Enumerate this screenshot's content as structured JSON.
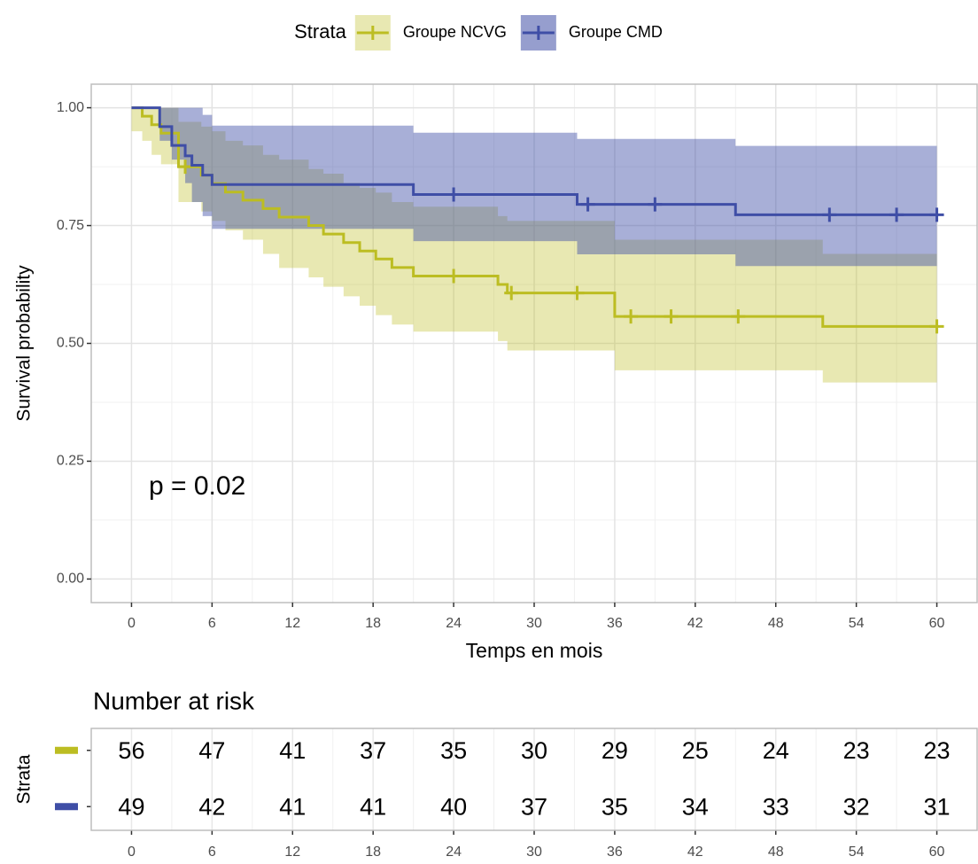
{
  "chart_data": [
    {
      "type": "survival",
      "legend_title": "Strata",
      "legend_position": "top",
      "xlabel": "Temps en mois",
      "ylabel": "Survival probability",
      "annotation": "p = 0.02",
      "xlim": [
        -3,
        63
      ],
      "ylim": [
        -0.05,
        1.05
      ],
      "xticks": [
        0,
        6,
        12,
        18,
        24,
        30,
        36,
        42,
        48,
        54,
        60
      ],
      "yticks": [
        {
          "value": 0,
          "label": "0.00"
        },
        {
          "value": 0.25,
          "label": "0.25"
        },
        {
          "value": 0.5,
          "label": "0.50"
        },
        {
          "value": 0.75,
          "label": "0.75"
        },
        {
          "value": 1,
          "label": "1.00"
        }
      ],
      "grid": true,
      "series": [
        {
          "name": "Groupe NCVG",
          "color": "#bcbd22",
          "x": [
            0,
            0.8,
            1.5,
            2.2,
            3.5,
            5.2,
            6.0,
            7.0,
            8.3,
            9.8,
            11.0,
            13.2,
            14.3,
            15.8,
            17.0,
            18.2,
            19.4,
            21.0,
            27.3,
            28.0,
            36.0,
            51.5,
            60
          ],
          "values": [
            1.0,
            0.982,
            0.964,
            0.946,
            0.875,
            0.857,
            0.839,
            0.821,
            0.804,
            0.786,
            0.768,
            0.75,
            0.732,
            0.714,
            0.696,
            0.679,
            0.661,
            0.643,
            0.625,
            0.607,
            0.557,
            0.536,
            0.536
          ],
          "upper": [
            1.0,
            1.0,
            1.0,
            1.0,
            0.97,
            0.96,
            0.95,
            0.93,
            0.92,
            0.9,
            0.89,
            0.87,
            0.86,
            0.84,
            0.83,
            0.82,
            0.8,
            0.79,
            0.77,
            0.76,
            0.72,
            0.69,
            0.69
          ],
          "lower": [
            0.95,
            0.93,
            0.9,
            0.88,
            0.8,
            0.78,
            0.76,
            0.74,
            0.72,
            0.69,
            0.66,
            0.64,
            0.62,
            0.6,
            0.58,
            0.56,
            0.54,
            0.525,
            0.505,
            0.485,
            0.443,
            0.417,
            0.417
          ],
          "censor_x": [
            4,
            24,
            28.3,
            33.2,
            37.2,
            40.2,
            45.2,
            60
          ],
          "censor_values": [
            0.875,
            0.643,
            0.607,
            0.607,
            0.557,
            0.557,
            0.557,
            0.536
          ]
        },
        {
          "name": "Groupe CMD",
          "color": "#3f4ea6",
          "x": [
            0,
            2.1,
            3.0,
            4.0,
            4.5,
            5.3,
            6.0,
            21.0,
            33.2,
            45.0,
            60
          ],
          "values": [
            1.0,
            0.96,
            0.92,
            0.898,
            0.878,
            0.857,
            0.837,
            0.816,
            0.795,
            0.773,
            0.773
          ],
          "upper": [
            1.0,
            1.0,
            1.0,
            1.0,
            1.0,
            0.985,
            0.962,
            0.947,
            0.934,
            0.919,
            0.904
          ],
          "lower": [
            1.0,
            0.93,
            0.89,
            0.84,
            0.8,
            0.77,
            0.743,
            0.717,
            0.689,
            0.664,
            0.664
          ],
          "censor_x": [
            24,
            34,
            39,
            52,
            57,
            60
          ],
          "censor_values": [
            0.816,
            0.795,
            0.795,
            0.773,
            0.773,
            0.773
          ]
        }
      ]
    },
    {
      "type": "risk_table",
      "title": "Number at risk",
      "ylabel": "Strata",
      "xlim": [
        -3,
        63
      ],
      "xticks": [
        0,
        6,
        12,
        18,
        24,
        30,
        36,
        42,
        48,
        54,
        60
      ],
      "rows": [
        {
          "color": "#bcbd22",
          "values": [
            56,
            47,
            41,
            37,
            35,
            30,
            29,
            25,
            24,
            23,
            23
          ]
        },
        {
          "color": "#3f4ea6",
          "values": [
            49,
            42,
            41,
            41,
            40,
            37,
            35,
            34,
            33,
            32,
            31
          ]
        }
      ]
    }
  ]
}
